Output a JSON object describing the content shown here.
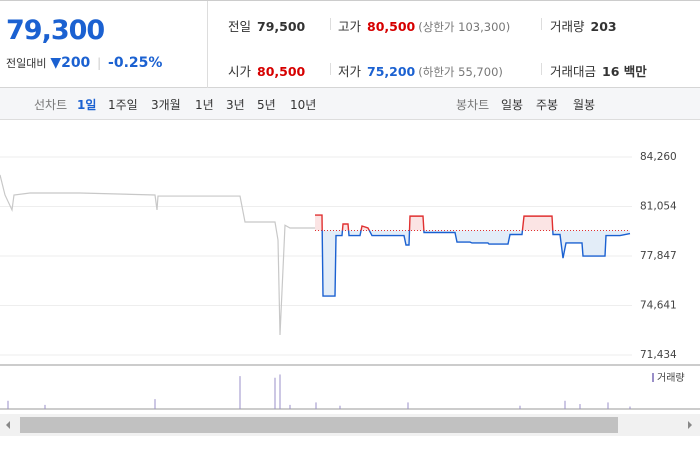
{
  "header": {
    "price": "79,300",
    "change_label": "전일대비",
    "change": "▼200",
    "change_pct": "-0.25%",
    "stats": [
      {
        "label": "전일",
        "value": "79,500"
      },
      {
        "label": "고가",
        "value": "80,500",
        "note": "(상한가 103,300)"
      },
      {
        "label": "거래량",
        "value": "203"
      },
      {
        "label": "시가",
        "value": "80,500"
      },
      {
        "label": "저가",
        "value": "75,200",
        "note": "(하한가 55,700)"
      },
      {
        "label": "거래대금",
        "value": "16 백만"
      }
    ]
  },
  "toolbar": {
    "line_label": "선차트",
    "line_periods": [
      "1일",
      "1주일",
      "3개월",
      "1년",
      "3년",
      "5년",
      "10년"
    ],
    "candle_label": "봉차트",
    "candle_periods": [
      "일봉",
      "주봉",
      "월봉"
    ]
  },
  "chart_data": {
    "type": "line",
    "ylim": [
      70786,
      86657
    ],
    "yticks": [
      {
        "value": 84260,
        "label": "84,260"
      },
      {
        "value": 81054,
        "label": "81,054"
      },
      {
        "value": 77847,
        "label": "77,847"
      },
      {
        "value": 74641,
        "label": "74,641"
      },
      {
        "value": 71434,
        "label": "71,434"
      }
    ],
    "xlim": [
      0,
      632
    ],
    "grid": true,
    "baseline": 79500,
    "series": [
      {
        "color": "#c8c8c8",
        "x": [
          0,
          5,
          12,
          14,
          30,
          80,
          155,
          157,
          158,
          240,
          245,
          275,
          278,
          280,
          285,
          290,
          315
        ],
        "values": [
          83100,
          81800,
          80830,
          81800,
          81930,
          81930,
          81800,
          80830,
          81730,
          81730,
          80050,
          80050,
          78880,
          72730,
          79840,
          79660,
          79660
        ]
      },
      {
        "color": "#1b61d1",
        "up_color": "#e03030",
        "x": [
          315,
          322,
          323,
          335,
          336,
          342,
          343,
          348,
          349,
          360,
          362,
          368,
          372,
          404,
          406,
          409,
          410,
          423,
          424,
          455,
          457,
          470,
          472,
          488,
          489,
          508,
          510,
          522,
          524,
          552,
          553,
          560,
          563,
          566,
          582,
          583,
          605,
          606,
          620,
          630
        ],
        "values": [
          80500,
          80500,
          75250,
          75250,
          79170,
          79170,
          79920,
          79920,
          79170,
          79170,
          79790,
          79660,
          79170,
          79170,
          78560,
          78560,
          80430,
          80430,
          79370,
          79370,
          78750,
          78750,
          78690,
          78690,
          78620,
          78620,
          79240,
          79240,
          80430,
          80430,
          79240,
          79240,
          77710,
          78690,
          78690,
          77840,
          77840,
          79170,
          79170,
          79300
        ]
      }
    ],
    "volume": {
      "legend": "거래량",
      "color": "#9a8fc8",
      "vlim": [
        0,
        45
      ],
      "x": [
        8,
        45,
        155,
        240,
        275,
        280,
        290,
        316,
        340,
        408,
        520,
        565,
        580,
        608,
        630
      ],
      "values": [
        10,
        5,
        12,
        40,
        38,
        42,
        5,
        8,
        4,
        8,
        4,
        10,
        6,
        8,
        3
      ]
    }
  }
}
